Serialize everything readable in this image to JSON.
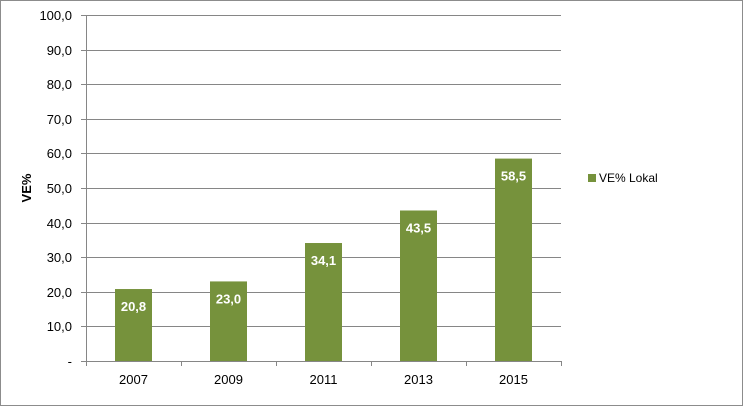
{
  "chart_data": {
    "type": "bar",
    "categories": [
      "2007",
      "2009",
      "2011",
      "2013",
      "2015"
    ],
    "series": [
      {
        "name": "VE% Lokal",
        "values": [
          20.8,
          23.0,
          34.1,
          43.5,
          58.5
        ],
        "data_labels": [
          "20,8",
          "23,0",
          "34,1",
          "43,5",
          "58,5"
        ]
      }
    ],
    "title": "",
    "xlabel": "",
    "ylabel": "VE%",
    "ylim": [
      0,
      100
    ],
    "yticks": [
      0,
      10,
      20,
      30,
      40,
      50,
      60,
      70,
      80,
      90,
      100
    ],
    "ytick_labels": [
      "-",
      "10,0",
      "20,0",
      "30,0",
      "40,0",
      "50,0",
      "60,0",
      "70,0",
      "80,0",
      "90,0",
      "100,0"
    ],
    "grid": true,
    "legend_position": "right",
    "colors": {
      "bar": "#76923c",
      "grid": "#868686",
      "axis": "#868686"
    }
  }
}
